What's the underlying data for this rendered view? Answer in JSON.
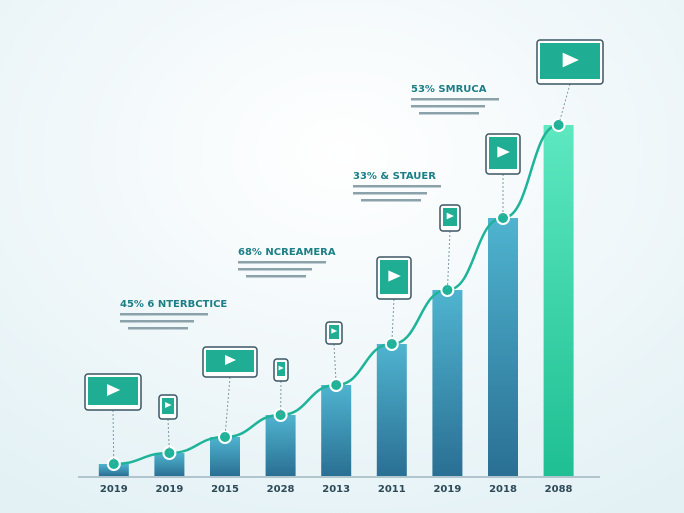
{
  "chart_data": {
    "type": "bar",
    "categories": [
      "2019",
      "2019",
      "2015",
      "2028",
      "2013",
      "2011",
      "2019",
      "2018",
      "2088"
    ],
    "values": [
      12,
      23,
      39,
      61,
      91,
      132,
      186,
      258,
      351
    ],
    "color": "#3a8fb0",
    "highlight_color": "#2ed3a6",
    "line_color": "#1fb39a",
    "annotations": [
      "45% 6 NTERBCTICE",
      "68% NCREAMERA",
      "33% & STAUER",
      "53% SMRUCA"
    ]
  }
}
